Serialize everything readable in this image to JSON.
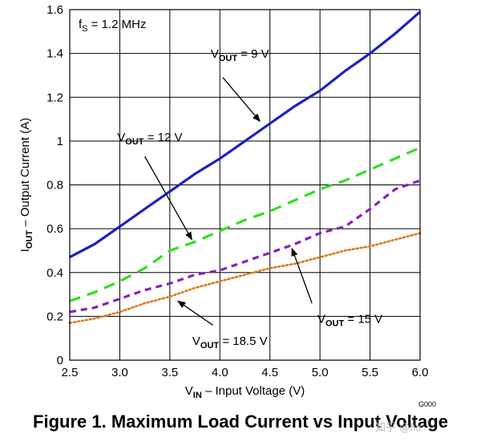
{
  "figure": {
    "caption": "Figure 1. Maximum Load Current vs Input Voltage",
    "code": "G000",
    "watermark": "知乎 @łııı"
  },
  "chart_data": {
    "type": "line",
    "xlabel_main": "V",
    "xlabel_sub": "IN",
    "xlabel_rest": " – Input Voltage (V)",
    "ylabel_main": "I",
    "ylabel_sub": "OUT",
    "ylabel_rest": " – Output Current (A)",
    "xlim": [
      2.5,
      6.0
    ],
    "ylim": [
      0,
      1.6
    ],
    "xticks": [
      "2.5",
      "3.0",
      "3.5",
      "4.0",
      "4.5",
      "5.0",
      "5.5",
      "6.0"
    ],
    "yticks": [
      "0",
      "0.2",
      "0.4",
      "0.6",
      "0.8",
      "1",
      "1.2",
      "1.4",
      "1.6"
    ],
    "grid": true,
    "fs_label": {
      "main": "f",
      "sub": "S",
      "rest": " = 1.2 MHz"
    },
    "series": [
      {
        "name": "V_OUT = 9 V",
        "label_main": "V",
        "label_sub": "OUT",
        "label_rest": " = 9 V",
        "color": "#1f1fbf",
        "dash": "solid",
        "x": [
          2.5,
          2.75,
          3.0,
          3.25,
          3.5,
          3.75,
          4.0,
          4.25,
          4.5,
          4.75,
          5.0,
          5.25,
          5.5,
          5.75,
          6.0
        ],
        "y": [
          0.47,
          0.53,
          0.61,
          0.69,
          0.77,
          0.85,
          0.92,
          1.0,
          1.08,
          1.16,
          1.23,
          1.32,
          1.4,
          1.49,
          1.59
        ]
      },
      {
        "name": "V_OUT = 12 V",
        "label_main": "V",
        "label_sub": "OUT",
        "label_rest": " = 12 V",
        "color": "#33dd22",
        "dash": "long",
        "x": [
          2.5,
          2.75,
          3.0,
          3.25,
          3.5,
          3.75,
          4.0,
          4.25,
          4.5,
          4.75,
          5.0,
          5.25,
          5.5,
          5.75,
          6.0
        ],
        "y": [
          0.27,
          0.31,
          0.36,
          0.42,
          0.5,
          0.54,
          0.59,
          0.64,
          0.68,
          0.73,
          0.78,
          0.82,
          0.87,
          0.92,
          0.97
        ]
      },
      {
        "name": "V_OUT = 15 V",
        "label_main": "V",
        "label_sub": "OUT",
        "label_rest": " = 15 V",
        "color": "#8a1fbf",
        "dash": "medium",
        "x": [
          2.5,
          2.75,
          3.0,
          3.25,
          3.5,
          3.75,
          4.0,
          4.25,
          4.5,
          4.75,
          5.0,
          5.25,
          5.5,
          5.75,
          6.0
        ],
        "y": [
          0.22,
          0.24,
          0.28,
          0.32,
          0.35,
          0.39,
          0.41,
          0.45,
          0.49,
          0.53,
          0.58,
          0.61,
          0.69,
          0.78,
          0.82
        ]
      },
      {
        "name": "V_OUT = 18.5 V",
        "label_main": "V",
        "label_sub": "OUT",
        "label_rest": " = 18.5 V",
        "color": "#d87a1a",
        "dash": "dotted",
        "x": [
          2.5,
          2.75,
          3.0,
          3.25,
          3.5,
          3.75,
          4.0,
          4.25,
          4.5,
          4.75,
          5.0,
          5.25,
          5.5,
          5.75,
          6.0
        ],
        "y": [
          0.17,
          0.19,
          0.22,
          0.26,
          0.29,
          0.33,
          0.36,
          0.39,
          0.42,
          0.44,
          0.47,
          0.5,
          0.52,
          0.55,
          0.58
        ]
      }
    ],
    "annotations": [
      {
        "series": 0,
        "text_at": [
          4.2,
          1.38
        ],
        "arrow_from": [
          4.03,
          1.29
        ],
        "arrow_to": [
          4.4,
          1.09
        ]
      },
      {
        "series": 1,
        "text_at": [
          3.3,
          1.0
        ],
        "arrow_from": [
          3.25,
          0.93
        ],
        "arrow_to": [
          3.72,
          0.55
        ]
      },
      {
        "series": 2,
        "text_at": [
          5.3,
          0.17
        ],
        "arrow_from": [
          4.92,
          0.26
        ],
        "arrow_to": [
          4.72,
          0.51
        ]
      },
      {
        "series": 3,
        "text_at": [
          4.1,
          0.07
        ],
        "arrow_from": [
          3.93,
          0.16
        ],
        "arrow_to": [
          3.58,
          0.27
        ]
      }
    ]
  }
}
